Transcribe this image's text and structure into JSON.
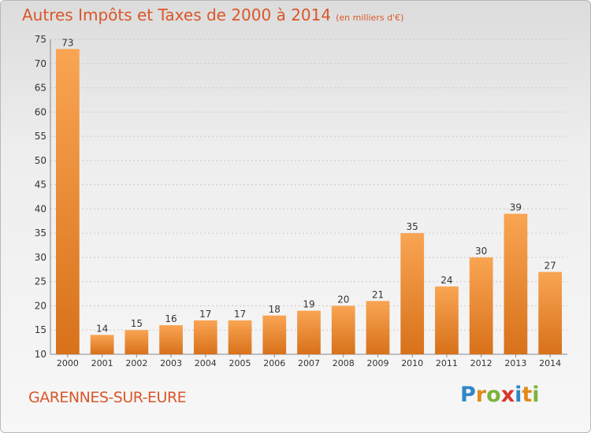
{
  "title": "Autres Impôts et Taxes de 2000 à 2014",
  "title_unit": "(en milliers d'€)",
  "commune": "GARENNES-SUR-EURE",
  "logo": {
    "letters": [
      "P",
      "r",
      "o",
      "x",
      "i",
      "t",
      "i"
    ],
    "colors": [
      "#2f86c8",
      "#e08a1a",
      "#7cb33a",
      "#d8362a",
      "#2f86c8",
      "#e08a1a",
      "#7cb33a"
    ]
  },
  "colors": {
    "bar_top": "#f9a553",
    "bar_bottom": "#d8711a",
    "title": "#d9572a"
  },
  "chart_data": {
    "type": "bar",
    "title": "Autres Impôts et Taxes de 2000 à 2014",
    "xlabel": "",
    "ylabel": "",
    "categories": [
      "2000",
      "2001",
      "2002",
      "2003",
      "2004",
      "2005",
      "2006",
      "2007",
      "2008",
      "2009",
      "2010",
      "2011",
      "2012",
      "2013",
      "2014"
    ],
    "values": [
      73,
      14,
      15,
      16,
      17,
      17,
      18,
      19,
      20,
      21,
      35,
      24,
      30,
      39,
      27
    ],
    "ylim": [
      10,
      75
    ],
    "yticks": [
      10,
      15,
      20,
      25,
      30,
      35,
      40,
      45,
      50,
      55,
      60,
      65,
      70,
      75
    ],
    "grid": true,
    "legend": "none"
  }
}
